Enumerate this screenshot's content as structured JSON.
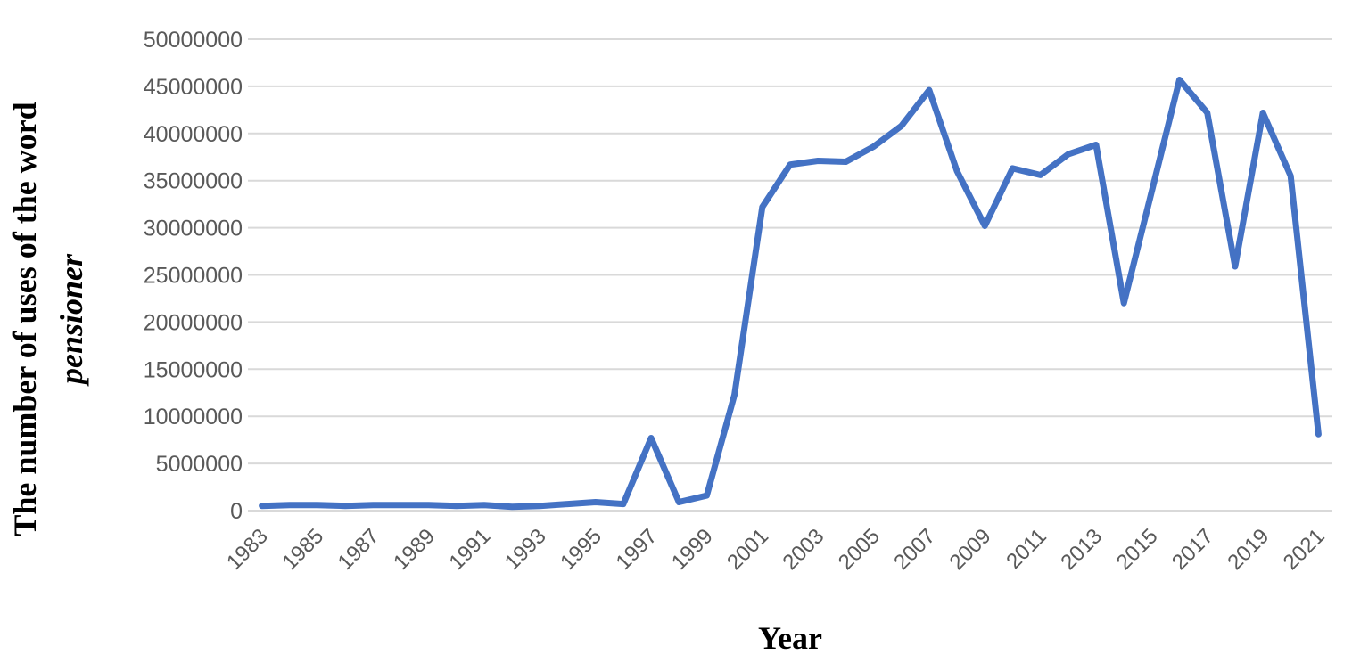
{
  "chart_data": {
    "type": "line",
    "title": "",
    "xlabel": "Year",
    "ylabel_line1": "The number of uses of the word",
    "ylabel_line2": "pensioner",
    "ylim": [
      0,
      50000000
    ],
    "yticks": [
      "0",
      "5000000",
      "10000000",
      "15000000",
      "20000000",
      "25000000",
      "30000000",
      "35000000",
      "40000000",
      "45000000",
      "50000000"
    ],
    "xtick_labels": [
      "1983",
      "1985",
      "1987",
      "1989",
      "1991",
      "1993",
      "1995",
      "1997",
      "1999",
      "2001",
      "2003",
      "2005",
      "2007",
      "2009",
      "2011",
      "2013",
      "2015",
      "2017",
      "2019",
      "2021"
    ],
    "grid": true,
    "legend": "none",
    "color": "#4472c4",
    "x": [
      1983,
      1984,
      1985,
      1986,
      1987,
      1988,
      1989,
      1990,
      1991,
      1992,
      1993,
      1994,
      1995,
      1996,
      1997,
      1998,
      1999,
      2000,
      2001,
      2002,
      2003,
      2004,
      2005,
      2006,
      2007,
      2008,
      2009,
      2010,
      2011,
      2012,
      2013,
      2014,
      2015,
      2016,
      2017,
      2018,
      2019,
      2020,
      2021
    ],
    "series": [
      {
        "values": [
          500000,
          600000,
          600000,
          500000,
          600000,
          600000,
          600000,
          500000,
          600000,
          400000,
          500000,
          700000,
          900000,
          700000,
          7700000,
          900000,
          1600000,
          12300000,
          32200000,
          36700000,
          37100000,
          37000000,
          38600000,
          40800000,
          44600000,
          36000000,
          30200000,
          36300000,
          35600000,
          37800000,
          38800000,
          22000000,
          33800000,
          45700000,
          42200000,
          25900000,
          42200000,
          35500000,
          8100000
        ]
      }
    ]
  }
}
